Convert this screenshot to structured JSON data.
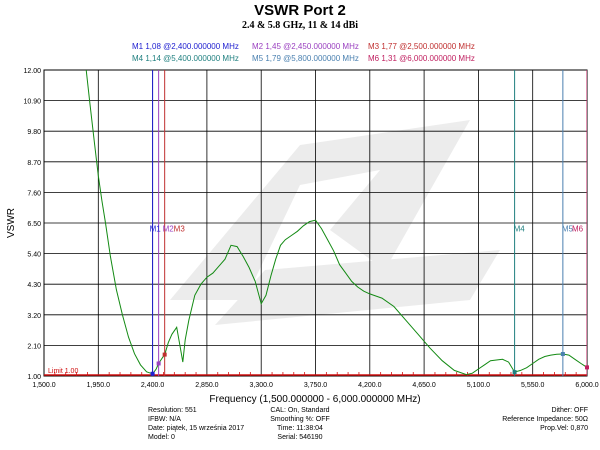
{
  "title": "VSWR Port 2",
  "subtitle": "2.4 & 5.8 GHz, 11 & 14 dBi",
  "marker_readouts": [
    {
      "text": "M1  1,08 @2,400.000000 MHz",
      "color": "#2020d0"
    },
    {
      "text": "M2  1,45 @2,450.000000 MHz",
      "color": "#9a40c0"
    },
    {
      "text": "M3  1,77 @2,500.000000 MHz",
      "color": "#c03030"
    },
    {
      "text": "M4  1,14 @5,400.000000 MHz",
      "color": "#208080"
    },
    {
      "text": "M5  1,79 @5,800.000000 MHz",
      "color": "#4a80b0"
    },
    {
      "text": "M6  1,31 @6,000.000000 MHz",
      "color": "#c02060"
    }
  ],
  "footer": {
    "col1": [
      "Resolution: 551",
      "IFBW: N/A",
      "Date: piątek, 15 września 2017",
      "Model: 0"
    ],
    "col2": [
      "CAL: On, Standard",
      "Smoothing %:  OFF",
      "Time: 11:38:04",
      "Serial: 546190"
    ],
    "col3": [
      "Dither:  OFF",
      "Reference Impedance: 50Ω",
      "Prop.Vel: 0,870"
    ]
  },
  "chart_data": {
    "type": "line",
    "title": "VSWR Port 2",
    "subtitle": "2.4 & 5.8 GHz, 11 & 14 dBi",
    "xlabel": "Frequency (1,500.000000 - 6,000.000000 MHz)",
    "ylabel": "VSWR",
    "xlim": [
      1500,
      6000
    ],
    "ylim": [
      1.0,
      12.0
    ],
    "xticks": [
      1500,
      1950,
      2400,
      2850,
      3300,
      3750,
      4200,
      4650,
      5100,
      5550,
      6000
    ],
    "xtick_labels": [
      "1,500.0",
      "1,950.0",
      "2,400.0",
      "2,850.0",
      "3,300.0",
      "3,750.0",
      "4,200.0",
      "4,650.0",
      "5,100.0",
      "5,550.0",
      "6,000.0"
    ],
    "yticks": [
      1.0,
      2.1,
      3.2,
      4.3,
      5.4,
      6.5,
      7.6,
      8.7,
      9.8,
      10.9,
      12.0
    ],
    "ytick_labels": [
      "1.00",
      "2.10",
      "3.20",
      "4.30",
      "5.40",
      "6.50",
      "7.60",
      "8.70",
      "9.80",
      "10.90",
      "12.00"
    ],
    "grid": true,
    "limit_line": {
      "label": "Limit 1.00",
      "value": 1.0,
      "color": "#d01010"
    },
    "series": [
      {
        "color": "#138a13",
        "x": [
          1850,
          1880,
          1920,
          1950,
          1980,
          2010,
          2050,
          2100,
          2150,
          2200,
          2250,
          2300,
          2350,
          2400,
          2430,
          2450,
          2480,
          2500,
          2530,
          2560,
          2600,
          2630,
          2650,
          2670,
          2700,
          2750,
          2800,
          2850,
          2900,
          2950,
          3000,
          3050,
          3100,
          3150,
          3200,
          3250,
          3300,
          3340,
          3380,
          3420,
          3460,
          3500,
          3550,
          3600,
          3650,
          3700,
          3750,
          3800,
          3850,
          3900,
          3950,
          4000,
          4050,
          4100,
          4150,
          4200,
          4300,
          4400,
          4500,
          4600,
          4700,
          4800,
          4900,
          5000,
          5050,
          5100,
          5150,
          5200,
          5300,
          5350,
          5400,
          5450,
          5500,
          5550,
          5600,
          5650,
          5700,
          5750,
          5800,
          5850,
          5900,
          5950,
          6000
        ],
        "y": [
          12.0,
          10.8,
          9.3,
          8.2,
          7.3,
          6.5,
          5.3,
          4.1,
          3.2,
          2.4,
          1.8,
          1.4,
          1.15,
          1.08,
          1.25,
          1.45,
          1.65,
          1.77,
          2.2,
          2.5,
          2.75,
          2.0,
          1.5,
          2.3,
          3.0,
          3.9,
          4.3,
          4.55,
          4.7,
          4.95,
          5.2,
          5.7,
          5.65,
          5.3,
          4.9,
          4.4,
          3.6,
          3.9,
          4.6,
          5.2,
          5.7,
          5.9,
          6.05,
          6.2,
          6.4,
          6.55,
          6.6,
          6.3,
          5.9,
          5.5,
          5.0,
          4.7,
          4.4,
          4.2,
          4.05,
          3.95,
          3.8,
          3.5,
          3.0,
          2.5,
          2.0,
          1.55,
          1.2,
          1.05,
          1.1,
          1.25,
          1.4,
          1.55,
          1.6,
          1.5,
          1.14,
          1.2,
          1.3,
          1.45,
          1.6,
          1.7,
          1.75,
          1.78,
          1.79,
          1.75,
          1.6,
          1.45,
          1.31
        ]
      }
    ],
    "markers": [
      {
        "label": "M1",
        "x": 2400,
        "y": 1.08,
        "color": "#2020d0"
      },
      {
        "label": "M2",
        "x": 2450,
        "y": 1.45,
        "color": "#9a40c0"
      },
      {
        "label": "M3",
        "x": 2500,
        "y": 1.77,
        "color": "#c03030"
      },
      {
        "label": "M4",
        "x": 5400,
        "y": 1.14,
        "color": "#208080"
      },
      {
        "label": "M5",
        "x": 5800,
        "y": 1.79,
        "color": "#4a80b0"
      },
      {
        "label": "M6",
        "x": 6000,
        "y": 1.31,
        "color": "#c02060"
      }
    ]
  }
}
